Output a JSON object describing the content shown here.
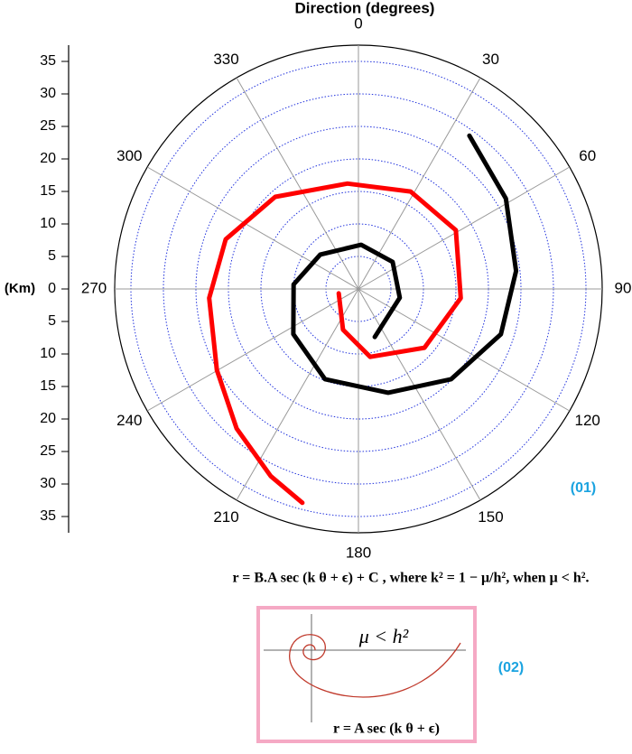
{
  "chart_data": {
    "type": "polar",
    "title": "Direction (degrees)",
    "y_label": "(Km)",
    "ylim": [
      -37.5,
      37.5
    ],
    "yticks": [
      35,
      30,
      25,
      20,
      15,
      10,
      5,
      0,
      {
        "value": -5,
        "label": "5"
      },
      {
        "value": -10,
        "label": "10"
      },
      {
        "value": -15,
        "label": "15"
      },
      {
        "value": -20,
        "label": "20"
      },
      {
        "value": -25,
        "label": "25"
      },
      {
        "value": -30,
        "label": "30"
      },
      {
        "value": -35,
        "label": "35"
      }
    ],
    "thetaticks": [
      0,
      30,
      60,
      90,
      120,
      150,
      180,
      210,
      240,
      270,
      300,
      330
    ],
    "grid": true,
    "series": [
      {
        "color": "#000000",
        "theta": [
          35.9,
          58.5,
          83.5,
          107.6,
          134.2,
          164,
          200.3,
          235.2,
          274,
          312,
          3.5,
          51.7,
          102,
          161.2
        ],
        "r": [
          29.1,
          26.6,
          24.4,
          23.0,
          19.9,
          16.6,
          14.8,
          12.2,
          10.0,
          7.9,
          6.8,
          6.7,
          6.5,
          7.8
        ]
      },
      {
        "color": "#ff0000",
        "theta": [
          257.2,
          200.7,
          170.2,
          131.7,
          95.1,
          58.9,
          28.2,
          354.1,
          317.9,
          290.5,
          266.5,
          240.2,
          221.1,
          205.1,
          194.7
        ],
        "r": [
          3.1,
          6.7,
          10.6,
          13.6,
          15.8,
          17.5,
          17.0,
          16.3,
          19.1,
          21.8,
          23.0,
          25.1,
          28.5,
          31.8,
          34.0
        ]
      }
    ],
    "annotation": "(01)"
  },
  "equation": "r = B.A sec (k θ + ϵ) + C , where k² = 1 − μ/h², when  μ < h².",
  "inset": {
    "label": "μ < h²",
    "equation": "r = A sec (k θ + ϵ)",
    "tag": "(02)"
  }
}
